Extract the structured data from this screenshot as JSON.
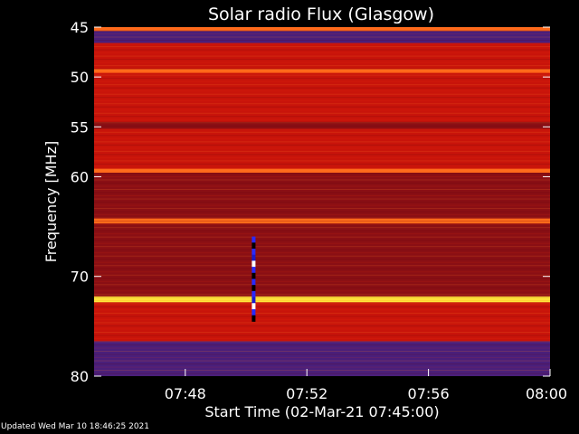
{
  "chart_data": {
    "type": "heatmap",
    "title": "Solar radio Flux (Glasgow)",
    "ylabel": "Frequency [MHz]",
    "xlabel": "Start Time (02-Mar-21 07:45:00)",
    "x_ticks": [
      "07:48",
      "07:52",
      "07:56",
      "08:00"
    ],
    "y_ticks": [
      "45",
      "50",
      "55",
      "60",
      "70",
      "80"
    ],
    "x_range": [
      "07:45:00",
      "08:00:00"
    ],
    "y_range_mhz": [
      45,
      80
    ],
    "colors": {
      "background": "#000000",
      "base_red": "#c8140a",
      "dark_red": "#8a0f14",
      "orange": "#ff6a1a",
      "yellow": "#ffe43a",
      "purple": "#4a1f7a",
      "blue": "#2a2aff"
    },
    "bands": [
      {
        "from_mhz": 45.0,
        "to_mhz": 45.4,
        "level": "orange"
      },
      {
        "from_mhz": 45.4,
        "to_mhz": 46.6,
        "level": "purple"
      },
      {
        "from_mhz": 46.6,
        "to_mhz": 49.2,
        "level": "base_red"
      },
      {
        "from_mhz": 49.2,
        "to_mhz": 49.6,
        "level": "orange"
      },
      {
        "from_mhz": 49.6,
        "to_mhz": 54.5,
        "level": "base_red"
      },
      {
        "from_mhz": 54.5,
        "to_mhz": 55.2,
        "level": "dark_red"
      },
      {
        "from_mhz": 55.2,
        "to_mhz": 59.2,
        "level": "base_red"
      },
      {
        "from_mhz": 59.2,
        "to_mhz": 59.6,
        "level": "orange"
      },
      {
        "from_mhz": 59.6,
        "to_mhz": 64.2,
        "level": "dark_red"
      },
      {
        "from_mhz": 64.2,
        "to_mhz": 64.7,
        "level": "orange"
      },
      {
        "from_mhz": 64.7,
        "to_mhz": 72.0,
        "level": "dark_red"
      },
      {
        "from_mhz": 72.0,
        "to_mhz": 72.6,
        "level": "yellow"
      },
      {
        "from_mhz": 72.6,
        "to_mhz": 76.5,
        "level": "base_red"
      },
      {
        "from_mhz": 76.5,
        "to_mhz": 80.0,
        "level": "purple"
      }
    ],
    "burst": {
      "time": "07:50:15",
      "from_mhz": 66.0,
      "to_mhz": 74.5
    }
  },
  "status": {
    "updated": "Updated Wed Mar 10 18:46:25 2021"
  }
}
